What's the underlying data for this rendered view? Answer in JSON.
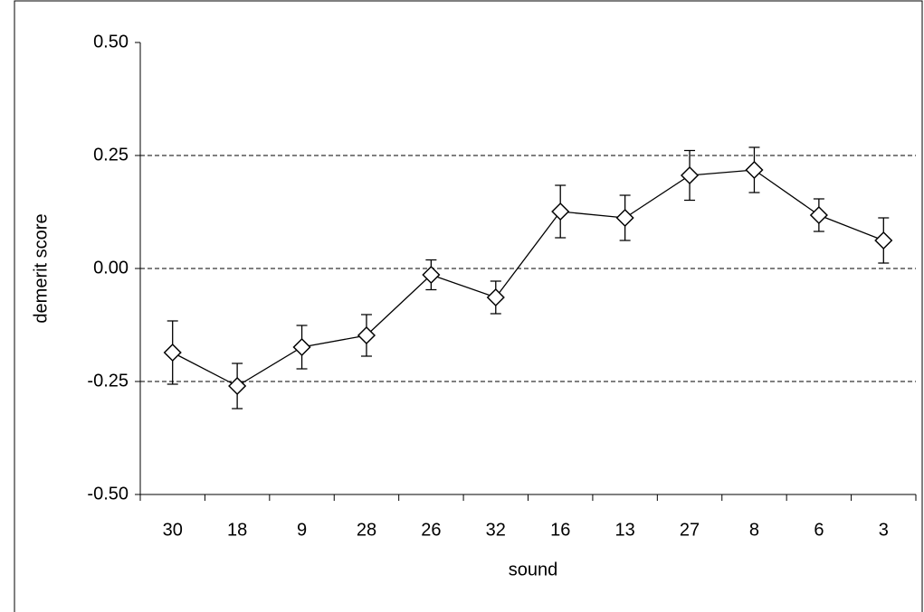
{
  "chart_data": {
    "type": "line",
    "x_label": "sound",
    "y_label": "demerit score",
    "categories": [
      "30",
      "18",
      "9",
      "28",
      "26",
      "32",
      "16",
      "13",
      "27",
      "8",
      "6",
      "3"
    ],
    "series": [
      {
        "color": "#000000",
        "marker": "diamond",
        "values": [
          -0.186,
          -0.26,
          -0.174,
          -0.148,
          -0.014,
          -0.064,
          0.126,
          0.112,
          0.206,
          0.218,
          0.118,
          0.062
        ],
        "errors": [
          0.07,
          0.05,
          0.048,
          0.046,
          0.033,
          0.036,
          0.058,
          0.05,
          0.055,
          0.05,
          0.036,
          0.05
        ]
      }
    ],
    "ylim": [
      -0.5,
      0.5
    ],
    "yticks": [
      {
        "value": -0.5,
        "label": "-0.50"
      },
      -0.25,
      {
        "value": 0,
        "label": "0.00"
      },
      0.25,
      {
        "value": 0.5,
        "label": "0.50"
      }
    ],
    "grid": true
  }
}
